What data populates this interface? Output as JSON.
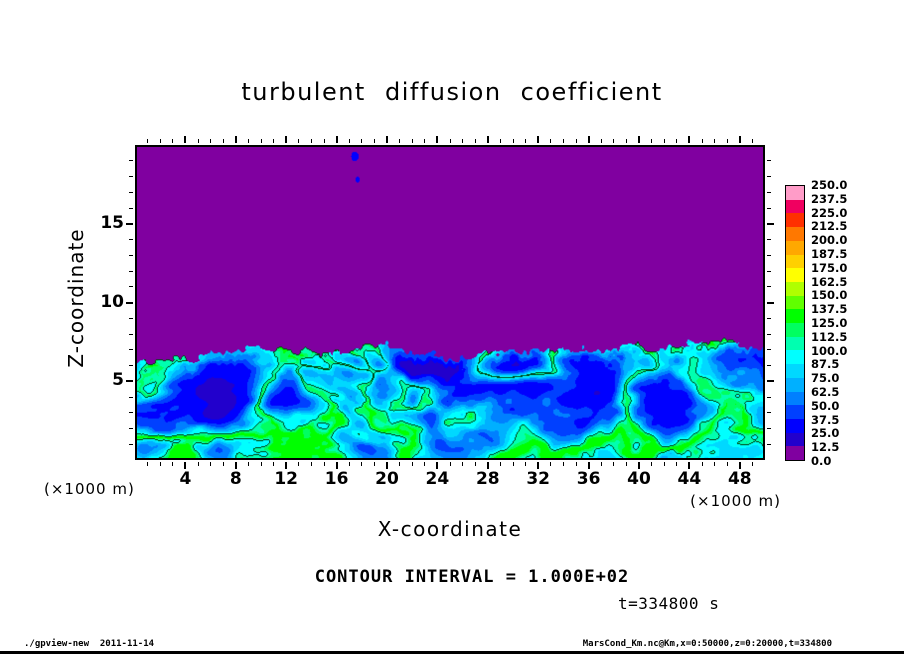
{
  "footer": {
    "left": "./gpview-new  2011-11-14",
    "right": "MarsCond_Km.nc@Km,x=0:50000,z=0:20000,t=334800"
  },
  "chart_data": {
    "type": "heatmap",
    "title": "turbulent diffusion coefficient",
    "x_axis": {
      "label": "X-coordinate",
      "unit": "(×1000 m)",
      "min": 0,
      "max": 50,
      "major_ticks": [
        4,
        8,
        12,
        16,
        20,
        24,
        28,
        32,
        36,
        40,
        44,
        48
      ],
      "minor_step": 1
    },
    "y_axis": {
      "label": "Z-coordinate",
      "unit": "(×1000 m)",
      "min": 0,
      "max": 20,
      "major_ticks": [
        5,
        10,
        15
      ],
      "minor_step": 1
    },
    "colorbar": {
      "min": 0,
      "max": 250,
      "step": 12.5,
      "levels": [
        "0.0",
        "12.5",
        "25.0",
        "37.5",
        "50.0",
        "62.5",
        "75.0",
        "87.5",
        "100.0",
        "112.5",
        "125.0",
        "137.5",
        "150.0",
        "162.5",
        "175.0",
        "187.5",
        "200.0",
        "212.5",
        "225.0",
        "237.5",
        "250.0"
      ],
      "colors_low_to_high": [
        "#8000a0",
        "#2200cc",
        "#0000ff",
        "#0040ff",
        "#0080ff",
        "#00b0ff",
        "#00d8ff",
        "#00ffff",
        "#00ffb0",
        "#00ff60",
        "#00ff00",
        "#60ff00",
        "#b0ff00",
        "#ffff00",
        "#ffd000",
        "#ffa800",
        "#ff7800",
        "#ff3000",
        "#f00060",
        "#ff9cc8"
      ],
      "position": "right"
    },
    "annotations": {
      "contour_interval": "CONTOUR INTERVAL = 1.000E+02",
      "time": "t=334800 s"
    },
    "contour_interval_value": 100,
    "time_seconds": 334800,
    "field": {
      "description": "Convective boundary layer field: value 0 (purple) above an irregular interface near z≈7 (×1000 m); below it, dark-blue background (≈15–40) laced with bright cyan turbulent filaments (≈60–110); a few small spots exceed the 100 contour and are outlined; two tiny blue specks above the interface near x≈17.5.",
      "seed": 1337,
      "interface_base": 5.2,
      "interface_amp": 4.0,
      "filament_peak": 96,
      "value_clamp": 126,
      "contour_level": 100,
      "spots": [
        {
          "x": 17.4,
          "z": 19.4,
          "r": 0.3,
          "v": 35
        },
        {
          "x": 17.6,
          "z": 17.9,
          "r": 0.18,
          "v": 30
        }
      ]
    }
  }
}
